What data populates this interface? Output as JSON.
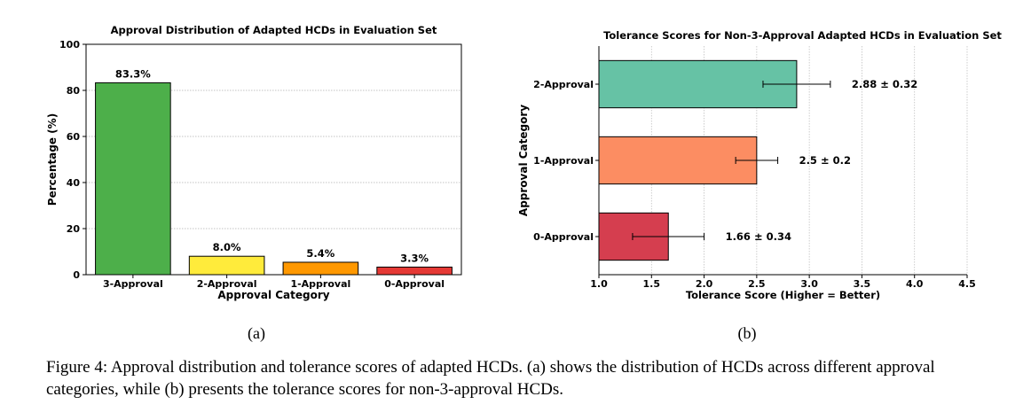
{
  "chart_data": [
    {
      "type": "bar",
      "title": "Approval Distribution of Adapted HCDs in Evaluation Set",
      "xlabel": "Approval Category",
      "ylabel": "Percentage (%)",
      "categories": [
        "3-Approval",
        "2-Approval",
        "1-Approval",
        "0-Approval"
      ],
      "values": [
        83.3,
        8.0,
        5.4,
        3.3
      ],
      "value_labels": [
        "83.3%",
        "8.0%",
        "5.4%",
        "3.3%"
      ],
      "colors": [
        "#4daf4a",
        "#ffeb3b",
        "#ff9800",
        "#e53935"
      ],
      "ylim": [
        0,
        100
      ],
      "yticks": [
        0,
        20,
        40,
        60,
        80,
        100
      ],
      "grid": "horizontal dotted"
    },
    {
      "type": "bar",
      "orientation": "horizontal",
      "title": "Tolerance Scores for Non-3-Approval Adapted HCDs in Evaluation Set",
      "xlabel": "Tolerance Score (Higher = Better)",
      "ylabel": "Approval Category",
      "categories": [
        "2-Approval",
        "1-Approval",
        "0-Approval"
      ],
      "values": [
        2.88,
        2.5,
        1.66
      ],
      "errors": [
        0.32,
        0.2,
        0.34
      ],
      "value_labels": [
        "2.88 ± 0.32",
        "2.5 ± 0.2",
        "1.66 ± 0.34"
      ],
      "colors": [
        "#66c2a5",
        "#fc8d62",
        "#d53e4f"
      ],
      "xlim": [
        1.0,
        4.5
      ],
      "xticks": [
        "1.0",
        "1.5",
        "2.0",
        "2.5",
        "3.0",
        "3.5",
        "4.0",
        "4.5"
      ],
      "grid": "vertical dotted"
    }
  ],
  "sublabels": {
    "a": "(a)",
    "b": "(b)"
  },
  "caption": "Figure 4: Approval distribution and tolerance scores of adapted HCDs. (a) shows the distribution of HCDs across different approval categories, while (b) presents the tolerance scores for non-3-approval HCDs."
}
